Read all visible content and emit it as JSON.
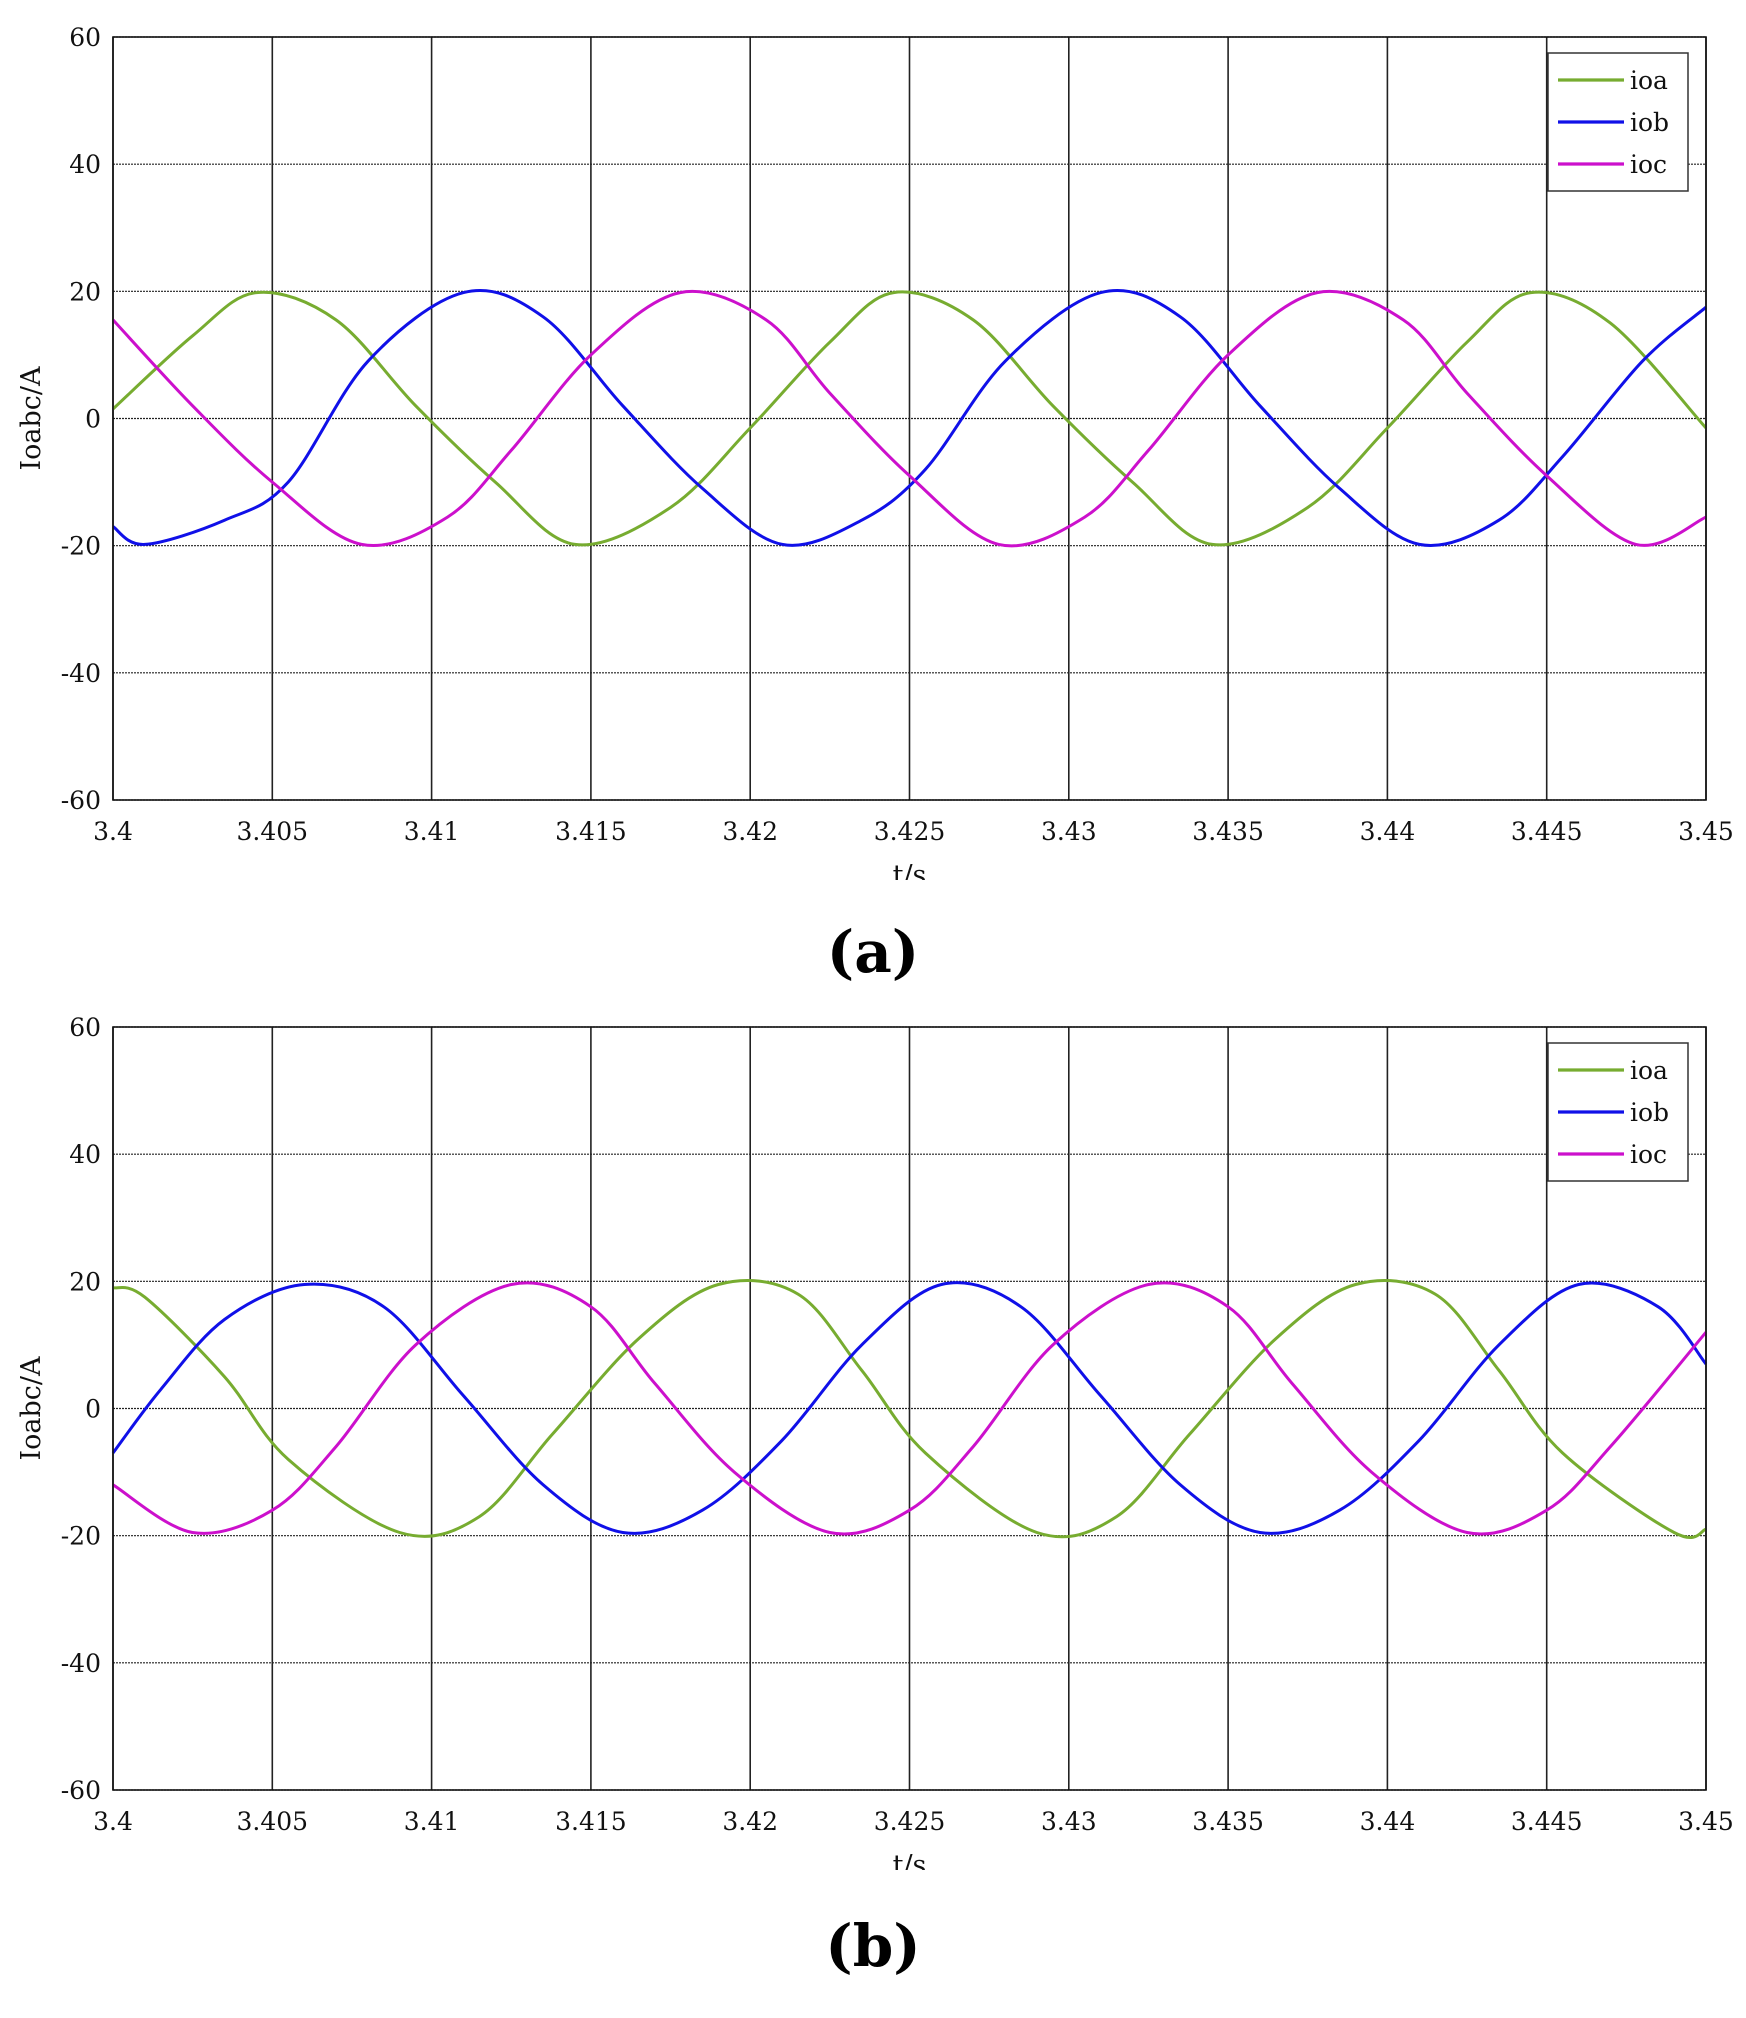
{
  "chart_data": [
    {
      "type": "line",
      "panel_label": "(a)",
      "xlabel": "t/s",
      "ylabel": "Ioabc/A",
      "xlim": [
        3.4,
        3.45
      ],
      "ylim": [
        -60,
        60
      ],
      "xticks": [
        "3.4",
        "3.405",
        "3.41",
        "3.415",
        "3.42",
        "3.425",
        "3.43",
        "3.435",
        "3.44",
        "3.445",
        "3.45"
      ],
      "yticks": [
        "60",
        "40",
        "20",
        "0",
        "-20",
        "-40",
        "-60"
      ],
      "grid": true,
      "legend_position": "top-right",
      "series": [
        {
          "name": "ioa",
          "color": "#77ac30",
          "x": [
            3.4,
            3.4025,
            3.4045,
            3.407,
            3.4095,
            3.412,
            3.4145,
            3.4175,
            3.42,
            3.4225,
            3.4245,
            3.427,
            3.4295,
            3.432,
            3.4345,
            3.4375,
            3.44,
            3.4425,
            3.4445,
            3.447,
            3.45
          ],
          "y": [
            1.5,
            13,
            19.8,
            15.5,
            2,
            -10,
            -19.8,
            -14,
            -1.5,
            12,
            19.8,
            15.5,
            2,
            -10,
            -19.8,
            -14,
            -1.5,
            12,
            19.8,
            15,
            -1.5
          ]
        },
        {
          "name": "iob",
          "color": "#1010e8",
          "x": [
            3.4,
            3.401,
            3.4035,
            3.4055,
            3.408,
            3.411,
            3.4135,
            3.416,
            3.4185,
            3.421,
            3.4235,
            3.4255,
            3.428,
            3.431,
            3.4335,
            3.436,
            3.4385,
            3.441,
            3.4435,
            3.4455,
            3.448,
            3.45
          ],
          "y": [
            -17,
            -19.8,
            -16,
            -10,
            9,
            19.8,
            16,
            2,
            -11,
            -19.8,
            -16,
            -8,
            9,
            19.8,
            16,
            2,
            -11,
            -19.8,
            -16,
            -6,
            9,
            17.5
          ]
        },
        {
          "name": "ioc",
          "color": "#cc10cc",
          "x": [
            3.4,
            3.4025,
            3.405,
            3.4078,
            3.4105,
            3.4125,
            3.415,
            3.4178,
            3.4205,
            3.4225,
            3.425,
            3.4278,
            3.4305,
            3.4325,
            3.435,
            3.4378,
            3.4405,
            3.4425,
            3.445,
            3.4478,
            3.45
          ],
          "y": [
            15.5,
            2,
            -10,
            -19.8,
            -15.5,
            -5,
            10,
            19.8,
            15.5,
            4,
            -9,
            -19.8,
            -15.5,
            -5,
            10,
            19.8,
            15.5,
            4,
            -9,
            -19.8,
            -15.5
          ]
        }
      ]
    },
    {
      "type": "line",
      "panel_label": "(b)",
      "xlabel": "t/s",
      "ylabel": "Ioabc/A",
      "xlim": [
        3.4,
        3.45
      ],
      "ylim": [
        -60,
        60
      ],
      "xticks": [
        "3.4",
        "3.405",
        "3.41",
        "3.415",
        "3.42",
        "3.425",
        "3.43",
        "3.435",
        "3.44",
        "3.445",
        "3.45"
      ],
      "yticks": [
        "60",
        "40",
        "20",
        "0",
        "-20",
        "-40",
        "-60"
      ],
      "grid": true,
      "legend_position": "top-right",
      "series": [
        {
          "name": "ioa",
          "color": "#77ac30",
          "x": [
            3.4,
            3.401,
            3.4035,
            3.4055,
            3.409,
            3.4115,
            3.4138,
            3.4165,
            3.419,
            3.4215,
            3.4235,
            3.4255,
            3.429,
            3.4315,
            3.4338,
            3.4365,
            3.439,
            3.4415,
            3.4435,
            3.4455,
            3.449,
            3.45
          ],
          "y": [
            19,
            17.5,
            5,
            -8,
            -19.5,
            -17,
            -4,
            11,
            19.5,
            18,
            6,
            -7,
            -19.5,
            -17,
            -4,
            11,
            19.5,
            18,
            6,
            -7,
            -19.5,
            -19
          ]
        },
        {
          "name": "iob",
          "color": "#1010e8",
          "x": [
            3.4,
            3.4015,
            3.4035,
            3.406,
            3.4085,
            3.411,
            3.4135,
            3.416,
            3.4185,
            3.421,
            3.4235,
            3.426,
            3.4285,
            3.431,
            3.4335,
            3.436,
            3.4385,
            3.441,
            3.4435,
            3.446,
            3.4485,
            3.45
          ],
          "y": [
            -7,
            3,
            14,
            19.5,
            16,
            2,
            -12,
            -19.5,
            -16,
            -5,
            10,
            19.5,
            16,
            2,
            -12,
            -19.5,
            -16,
            -5,
            10,
            19.5,
            16,
            7
          ]
        },
        {
          "name": "ioc",
          "color": "#cc10cc",
          "x": [
            3.4,
            3.4025,
            3.405,
            3.407,
            3.4095,
            3.4125,
            3.415,
            3.417,
            3.4195,
            3.4225,
            3.425,
            3.427,
            3.4295,
            3.4325,
            3.435,
            3.437,
            3.4395,
            3.4425,
            3.445,
            3.447,
            3.45
          ],
          "y": [
            -12,
            -19.5,
            -16,
            -6,
            10,
            19.5,
            16,
            4,
            -10,
            -19.5,
            -16,
            -6,
            10,
            19.5,
            16,
            4,
            -10,
            -19.5,
            -16,
            -6,
            12
          ]
        }
      ]
    }
  ]
}
